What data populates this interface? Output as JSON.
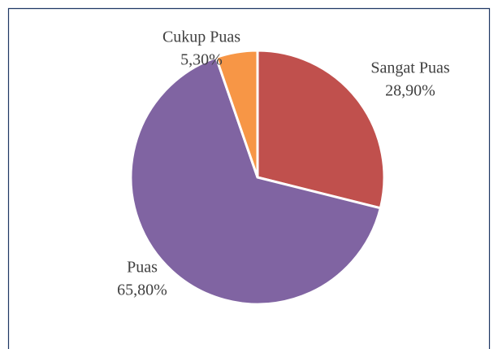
{
  "chart_data": {
    "type": "pie",
    "categories": [
      "Sangat Puas",
      "Puas",
      "Cukup Puas"
    ],
    "values": [
      28.9,
      65.8,
      5.3
    ],
    "value_labels": [
      "28,90%",
      "65,80%",
      "5,30%"
    ],
    "colors": [
      "#c0504d",
      "#8064a2",
      "#f79646"
    ]
  }
}
